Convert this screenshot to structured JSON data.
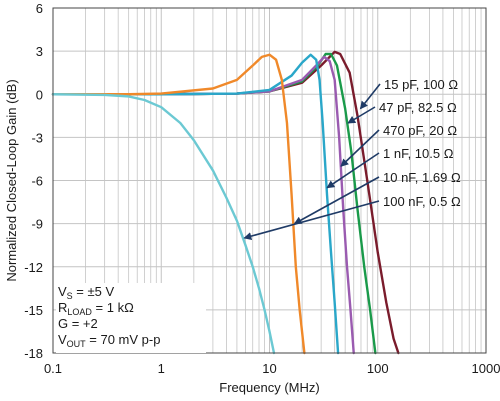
{
  "chart_data": {
    "type": "line",
    "xlabel": "Frequency (MHz)",
    "ylabel": "Normalized Closed-Loop Gain (dB)",
    "x_scale": "log",
    "xlim": [
      0.1,
      1000
    ],
    "ylim": [
      -18,
      6
    ],
    "x_ticks": [
      "0.1",
      "1",
      "10",
      "100",
      "1000"
    ],
    "y_ticks": [
      "6",
      "3",
      "0",
      "-3",
      "-6",
      "-9",
      "-12",
      "-15",
      "-18"
    ],
    "grid": true,
    "conditions": [
      {
        "main": "V",
        "sub": "S",
        "rest": " = ±5 V"
      },
      {
        "main": "R",
        "sub": "LOAD",
        "rest": " = 1 kΩ"
      },
      {
        "main": "G = +2",
        "sub": "",
        "rest": ""
      },
      {
        "main": "V",
        "sub": "OUT",
        "rest": " = 70 mV p-p"
      }
    ],
    "series": [
      {
        "name": "15 pF, 100 Ω",
        "color": "#7a1c2c",
        "points": [
          [
            0.1,
            0
          ],
          [
            1,
            0
          ],
          [
            5,
            0.05
          ],
          [
            10,
            0.2
          ],
          [
            20,
            0.8
          ],
          [
            30,
            2.0
          ],
          [
            40,
            2.95
          ],
          [
            45,
            2.8
          ],
          [
            55,
            1.5
          ],
          [
            65,
            -1.5
          ],
          [
            80,
            -6
          ],
          [
            100,
            -11
          ],
          [
            120,
            -14.5
          ],
          [
            140,
            -17
          ],
          [
            155,
            -18
          ]
        ]
      },
      {
        "name": "47 pF, 82.5 Ω",
        "color": "#1a9a4a",
        "points": [
          [
            0.1,
            0
          ],
          [
            1,
            0
          ],
          [
            5,
            0.05
          ],
          [
            10,
            0.2
          ],
          [
            20,
            0.9
          ],
          [
            28,
            2.0
          ],
          [
            33,
            2.8
          ],
          [
            37,
            2.8
          ],
          [
            42,
            2.0
          ],
          [
            50,
            -1.0
          ],
          [
            57,
            -4
          ],
          [
            65,
            -8
          ],
          [
            75,
            -12
          ],
          [
            85,
            -15
          ],
          [
            95,
            -18
          ]
        ]
      },
      {
        "name": "470 pF, 20 Ω",
        "color": "#9a5bb0",
        "points": [
          [
            0.1,
            0
          ],
          [
            1,
            0
          ],
          [
            5,
            0.05
          ],
          [
            10,
            0.2
          ],
          [
            20,
            1.0
          ],
          [
            27,
            2.0
          ],
          [
            32,
            2.6
          ],
          [
            36,
            2.3
          ],
          [
            40,
            1.0
          ],
          [
            44,
            -3
          ],
          [
            48,
            -8
          ],
          [
            52,
            -12
          ],
          [
            56,
            -15
          ],
          [
            60,
            -18
          ]
        ]
      },
      {
        "name": "1 nF, 10.5 Ω",
        "color": "#2aa7c9",
        "points": [
          [
            0.1,
            0
          ],
          [
            1,
            0
          ],
          [
            5,
            0.05
          ],
          [
            10,
            0.3
          ],
          [
            16,
            1.3
          ],
          [
            20,
            2.2
          ],
          [
            24,
            2.75
          ],
          [
            27,
            2.4
          ],
          [
            29,
            1.0
          ],
          [
            31,
            -2
          ],
          [
            34,
            -7
          ],
          [
            37,
            -11
          ],
          [
            40,
            -14.5
          ],
          [
            43,
            -18
          ]
        ]
      },
      {
        "name": "10 nF, 1.69 Ω",
        "color": "#f0892a",
        "points": [
          [
            0.1,
            0
          ],
          [
            0.5,
            0
          ],
          [
            1,
            0.05
          ],
          [
            3,
            0.4
          ],
          [
            5,
            1.0
          ],
          [
            7,
            2.0
          ],
          [
            8.5,
            2.6
          ],
          [
            10,
            2.75
          ],
          [
            11.5,
            2.4
          ],
          [
            13,
            1.0
          ],
          [
            14.5,
            -2
          ],
          [
            16,
            -7
          ],
          [
            17.5,
            -12
          ],
          [
            19,
            -15
          ],
          [
            21,
            -18
          ]
        ]
      },
      {
        "name": "100 nF, 0.5 Ω",
        "color": "#6cc9d3",
        "points": [
          [
            0.1,
            0
          ],
          [
            0.3,
            -0.05
          ],
          [
            0.5,
            -0.15
          ],
          [
            0.7,
            -0.4
          ],
          [
            1,
            -0.9
          ],
          [
            1.5,
            -2.0
          ],
          [
            2,
            -3.2
          ],
          [
            3,
            -5.3
          ],
          [
            4,
            -7.2
          ],
          [
            5,
            -8.8
          ],
          [
            6,
            -10.5
          ],
          [
            7,
            -12.0
          ],
          [
            8,
            -13.5
          ],
          [
            9,
            -15.0
          ],
          [
            10,
            -16.5
          ],
          [
            11,
            -18
          ]
        ]
      }
    ],
    "callouts": [
      {
        "label": "15 pF, 100 Ω",
        "series": 0,
        "target_x": 65,
        "target_y": -1.0
      },
      {
        "label": "47 pF, 82.5 Ω",
        "series": 1,
        "target_x": 50,
        "target_y": -2.0
      },
      {
        "label": "470 pF, 20 Ω",
        "series": 2,
        "target_x": 43,
        "target_y": -5.0
      },
      {
        "label": "1 nF, 10.5 Ω",
        "series": 3,
        "target_x": 32,
        "target_y": -6.5
      },
      {
        "label": "10 nF, 1.69 Ω",
        "series": 4,
        "target_x": 16,
        "target_y": -9.0
      },
      {
        "label": "100 nF, 0.5 Ω",
        "series": 5,
        "target_x": 5.5,
        "target_y": -10.0
      }
    ]
  }
}
